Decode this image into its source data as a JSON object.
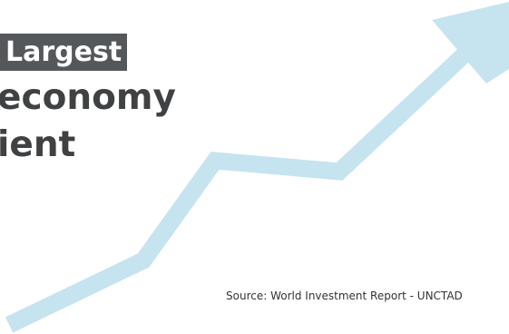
{
  "headline": {
    "badge_text": "Largest",
    "line_2": "economy",
    "line_3": "ient"
  },
  "source": {
    "text": "Source: World Investment Report - UNCTAD"
  },
  "colors": {
    "trend_arrow": "#c5e4ef",
    "headline_text": "#3f4143",
    "badge_background": "#55585b",
    "badge_text": "#ffffff",
    "source_text": "#333333"
  },
  "graphic": {
    "icon": "upward-trend-arrow-icon"
  }
}
